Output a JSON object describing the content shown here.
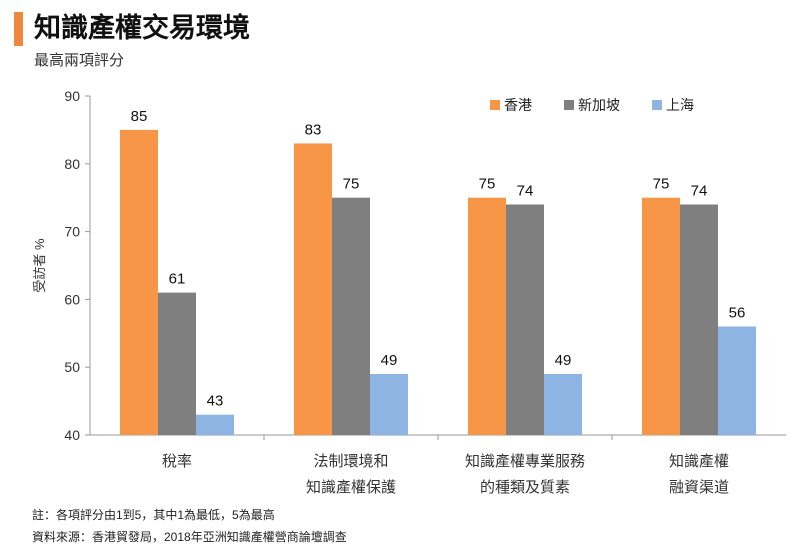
{
  "header": {
    "title": "知識產權交易環境",
    "subtitle": "最高兩項評分",
    "accent_color": "#F0873E"
  },
  "chart_data": {
    "type": "bar",
    "title": "知識產權交易環境",
    "subtitle": "最高兩項評分",
    "ylabel": "受訪者 %",
    "xlabel": "",
    "ylim": [
      40,
      90
    ],
    "yticks": [
      40,
      50,
      60,
      70,
      80,
      90
    ],
    "grid": false,
    "legend_position": "top-right",
    "categories": [
      [
        "稅率"
      ],
      [
        "法制環境和",
        "知識產權保護"
      ],
      [
        "知識產權專業服務",
        "的種類及質素"
      ],
      [
        "知識產權",
        "融資渠道"
      ]
    ],
    "series": [
      {
        "name": "香港",
        "color": "#F79646",
        "values": [
          85,
          83,
          75,
          75
        ]
      },
      {
        "name": "新加坡",
        "color": "#7F7F7F",
        "values": [
          61,
          75,
          74,
          74
        ]
      },
      {
        "name": "上海",
        "color": "#8DB4E2",
        "values": [
          43,
          49,
          49,
          56
        ]
      }
    ]
  },
  "footer": {
    "note": "註：各項評分由1到5，其中1為最低，5為最高",
    "source": "資料來源：香港貿發局，2018年亞洲知識產權營商論壇調查"
  }
}
